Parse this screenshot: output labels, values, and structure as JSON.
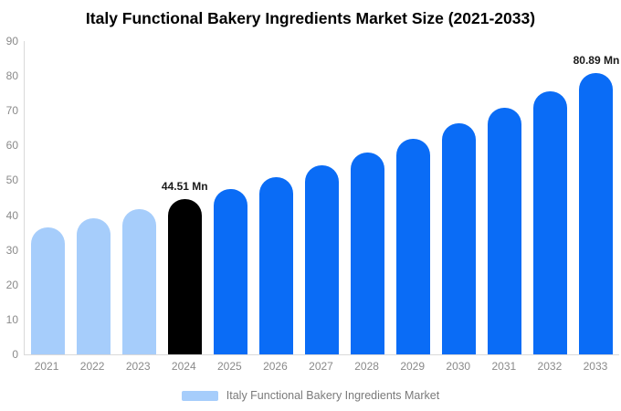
{
  "chart_data": {
    "type": "bar",
    "title": "Italy Functional Bakery Ingredients Market Size (2021-2033)",
    "unit": "Mn",
    "categories": [
      "2021",
      "2022",
      "2023",
      "2024",
      "2025",
      "2026",
      "2027",
      "2028",
      "2029",
      "2030",
      "2031",
      "2032",
      "2033"
    ],
    "values": [
      36.5,
      39.0,
      41.7,
      44.51,
      47.6,
      50.8,
      54.3,
      58.0,
      62.0,
      66.3,
      70.8,
      75.7,
      80.89
    ],
    "bar_color_keys": [
      "light",
      "light",
      "light",
      "highlight",
      "primary",
      "primary",
      "primary",
      "primary",
      "primary",
      "primary",
      "primary",
      "primary",
      "primary"
    ],
    "data_labels": [
      {
        "category": "2024",
        "text": "44.51 Mn"
      },
      {
        "category": "2033",
        "text": "80.89 Mn"
      }
    ],
    "ylim": [
      0,
      90
    ],
    "ytick_step": 10,
    "yticks": [
      0,
      10,
      20,
      30,
      40,
      50,
      60,
      70,
      80,
      90
    ],
    "grid": false,
    "legend_position": "bottom",
    "legend": [
      {
        "label": "Italy Functional Bakery Ingredients Market",
        "color_key": "light"
      }
    ],
    "colors": {
      "light": "#a6cdfb",
      "primary": "#0a6cf6",
      "highlight": "#000000",
      "axis_line": "#d9d9d9",
      "tick_text": "#8a8a8a",
      "title_text": "#000000",
      "data_label_text": "#1a1a1a",
      "legend_text": "#7a7a7a",
      "background": "#ffffff"
    }
  }
}
